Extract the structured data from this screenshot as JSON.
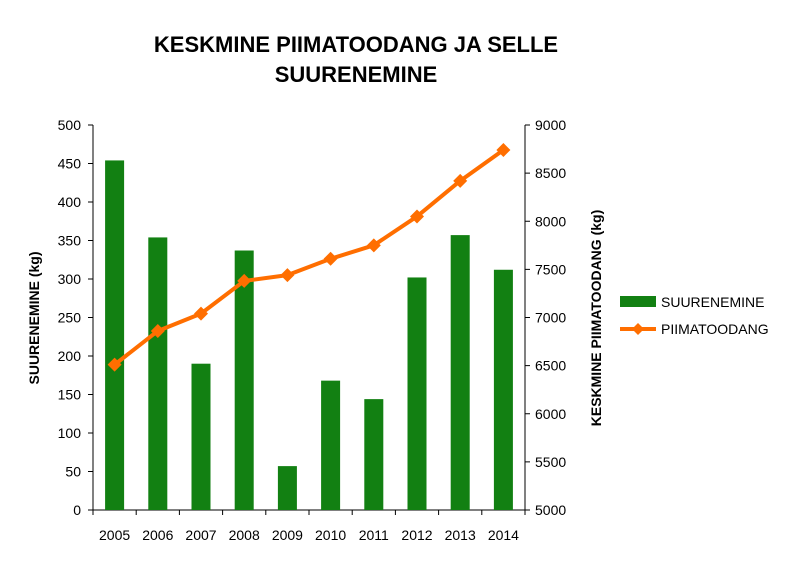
{
  "chart_data": {
    "type": "bar+line",
    "title_lines": [
      "KESKMINE PIIMATOODANG JA SELLE",
      "SUURENEMINE"
    ],
    "categories": [
      "2005",
      "2006",
      "2007",
      "2008",
      "2009",
      "2010",
      "2011",
      "2012",
      "2013",
      "2014"
    ],
    "series": [
      {
        "name": "SUURENEMINE",
        "type": "bar",
        "axis": "left",
        "color": "#128012",
        "values": [
          454,
          354,
          190,
          337,
          57,
          168,
          144,
          302,
          357,
          312
        ]
      },
      {
        "name": "PIIMATOODANG",
        "type": "line",
        "axis": "right",
        "color": "#ff6e00",
        "values": [
          6510,
          6860,
          7040,
          7380,
          7440,
          7610,
          7750,
          8050,
          8420,
          8740
        ]
      }
    ],
    "ylabel_left": "SUURENEMINE (kg)",
    "ylabel_right": "KESKMINE PIIMATOODANG (kg)",
    "ylim_left": [
      0,
      500
    ],
    "yticks_left": [
      "0",
      "50",
      "100",
      "150",
      "200",
      "250",
      "300",
      "350",
      "400",
      "450",
      "500"
    ],
    "ylim_right": [
      5000,
      9000
    ],
    "yticks_right": [
      "5000",
      "5500",
      "6000",
      "6500",
      "7000",
      "7500",
      "8000",
      "8500",
      "9000"
    ],
    "grid": false,
    "legend_position": "right"
  }
}
